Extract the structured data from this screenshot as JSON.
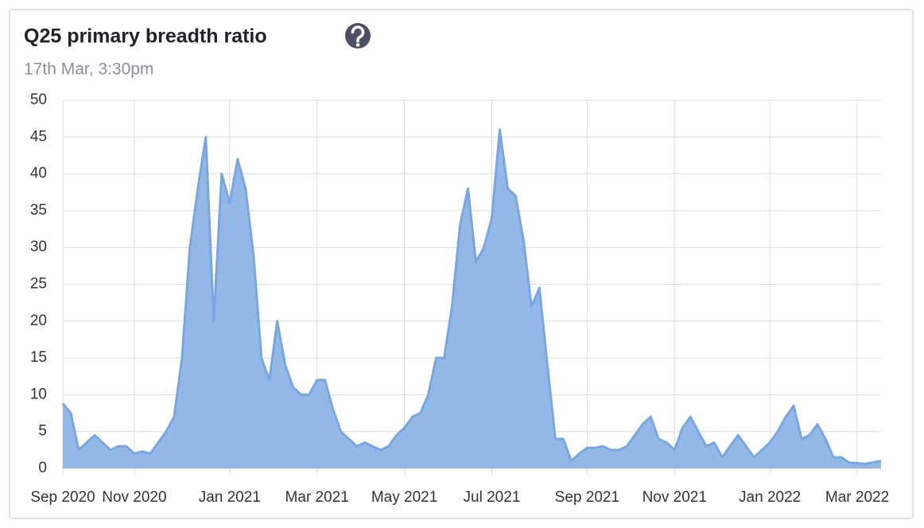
{
  "chart_data": {
    "type": "area",
    "title": "Q25 primary breadth ratio",
    "subtitle": "17th Mar, 3:30pm",
    "categories": [
      "Sep 2020",
      null,
      null,
      null,
      null,
      null,
      null,
      null,
      null,
      "Nov 2020",
      null,
      null,
      null,
      null,
      null,
      null,
      null,
      null,
      null,
      null,
      null,
      "Jan 2021",
      null,
      null,
      null,
      null,
      null,
      null,
      null,
      null,
      null,
      null,
      "Mar 2021",
      null,
      null,
      null,
      null,
      null,
      null,
      null,
      null,
      null,
      null,
      "May 2021",
      null,
      null,
      null,
      null,
      null,
      null,
      null,
      null,
      null,
      null,
      "Jul 2021",
      null,
      null,
      null,
      null,
      null,
      null,
      null,
      null,
      null,
      null,
      null,
      "Sep 2021",
      null,
      null,
      null,
      null,
      null,
      null,
      null,
      null,
      null,
      null,
      "Nov 2021",
      null,
      null,
      null,
      null,
      null,
      null,
      null,
      null,
      null,
      null,
      null,
      "Jan 2022",
      null,
      null,
      null,
      null,
      null,
      null,
      null,
      null,
      null,
      null,
      "Mar 2022",
      null,
      null,
      null
    ],
    "values": [
      8.8,
      7.5,
      2.5,
      3.5,
      4.5,
      3.5,
      2.5,
      3,
      3,
      2,
      2.3,
      2,
      3.5,
      5,
      7,
      15,
      30,
      38,
      45,
      20,
      40,
      36,
      42,
      38,
      29,
      15,
      12,
      20,
      14,
      11,
      10,
      10,
      12,
      12,
      8,
      5,
      4,
      3,
      3.5,
      3,
      2.5,
      3,
      4.5,
      5.5,
      7,
      7.5,
      10,
      15,
      15,
      22,
      33,
      38,
      28,
      30,
      34,
      46,
      38,
      37,
      31,
      22,
      24.5,
      14,
      4,
      4,
      1,
      2,
      2.8,
      2.8,
      3,
      2.5,
      2.5,
      3,
      4.5,
      6,
      7,
      4,
      3.5,
      2.5,
      5.5,
      7,
      5,
      3,
      3.5,
      1.5,
      3,
      4.5,
      3,
      1.5,
      2.5,
      3.5,
      5,
      7,
      8.5,
      4,
      4.5,
      6,
      4,
      1.5,
      1.5,
      0.8,
      0.7,
      0.6,
      0.8,
      1
    ],
    "color": "#8db4e6",
    "ylim": [
      0,
      50
    ],
    "yticks": [
      0,
      5,
      10,
      15,
      20,
      25,
      30,
      35,
      40,
      45,
      50
    ],
    "grid": true
  }
}
